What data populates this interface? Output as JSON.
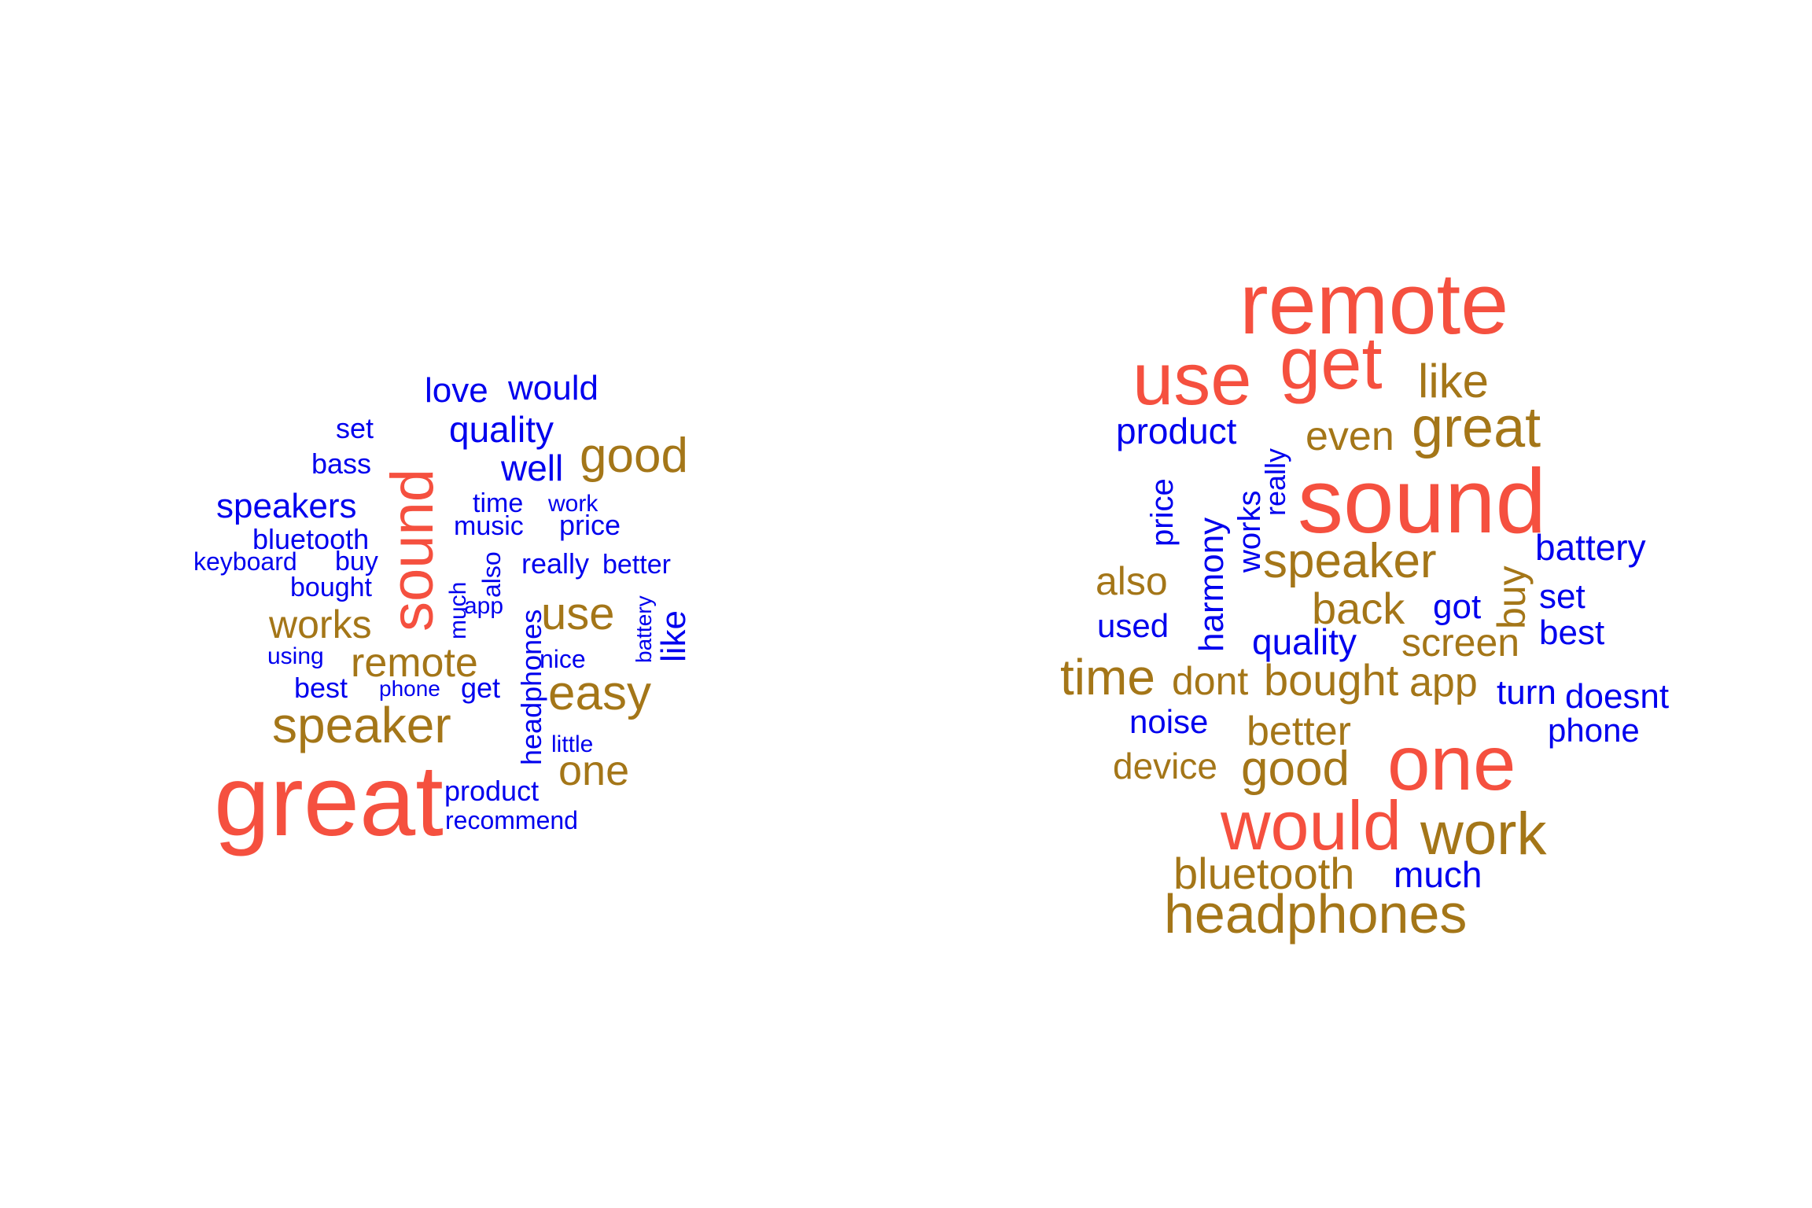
{
  "colors": {
    "top_tier": "#f5503f",
    "mid_tier": "#a47618",
    "low_tier": "#0000ee",
    "background": "#ffffff"
  },
  "word_clouds": [
    {
      "words": [
        {
          "text": "great",
          "tier": "top_tier"
        },
        {
          "text": "sound",
          "tier": "top_tier"
        },
        {
          "text": "speaker",
          "tier": "mid_tier"
        },
        {
          "text": "good",
          "tier": "mid_tier"
        },
        {
          "text": "easy",
          "tier": "mid_tier"
        },
        {
          "text": "use",
          "tier": "mid_tier"
        },
        {
          "text": "one",
          "tier": "mid_tier"
        },
        {
          "text": "remote",
          "tier": "mid_tier"
        },
        {
          "text": "works",
          "tier": "mid_tier"
        },
        {
          "text": "love",
          "tier": "low_tier"
        },
        {
          "text": "would",
          "tier": "low_tier"
        },
        {
          "text": "quality",
          "tier": "low_tier"
        },
        {
          "text": "well",
          "tier": "low_tier"
        },
        {
          "text": "speakers",
          "tier": "low_tier"
        },
        {
          "text": "set",
          "tier": "low_tier"
        },
        {
          "text": "bass",
          "tier": "low_tier"
        },
        {
          "text": "bluetooth",
          "tier": "low_tier"
        },
        {
          "text": "keyboard",
          "tier": "low_tier"
        },
        {
          "text": "buy",
          "tier": "low_tier"
        },
        {
          "text": "bought",
          "tier": "low_tier"
        },
        {
          "text": "time",
          "tier": "low_tier"
        },
        {
          "text": "work",
          "tier": "low_tier"
        },
        {
          "text": "music",
          "tier": "low_tier"
        },
        {
          "text": "price",
          "tier": "low_tier"
        },
        {
          "text": "really",
          "tier": "low_tier"
        },
        {
          "text": "better",
          "tier": "low_tier"
        },
        {
          "text": "also",
          "tier": "low_tier"
        },
        {
          "text": "app",
          "tier": "low_tier"
        },
        {
          "text": "much",
          "tier": "low_tier"
        },
        {
          "text": "headphones",
          "tier": "low_tier"
        },
        {
          "text": "battery",
          "tier": "low_tier"
        },
        {
          "text": "like",
          "tier": "low_tier"
        },
        {
          "text": "using",
          "tier": "low_tier"
        },
        {
          "text": "nice",
          "tier": "low_tier"
        },
        {
          "text": "best",
          "tier": "low_tier"
        },
        {
          "text": "phone",
          "tier": "low_tier"
        },
        {
          "text": "get",
          "tier": "low_tier"
        },
        {
          "text": "little",
          "tier": "low_tier"
        },
        {
          "text": "product",
          "tier": "low_tier"
        },
        {
          "text": "recommend",
          "tier": "low_tier"
        }
      ]
    },
    {
      "words": [
        {
          "text": "remote",
          "tier": "top_tier"
        },
        {
          "text": "sound",
          "tier": "top_tier"
        },
        {
          "text": "get",
          "tier": "top_tier"
        },
        {
          "text": "use",
          "tier": "top_tier"
        },
        {
          "text": "one",
          "tier": "top_tier"
        },
        {
          "text": "would",
          "tier": "top_tier"
        },
        {
          "text": "great",
          "tier": "mid_tier"
        },
        {
          "text": "like",
          "tier": "mid_tier"
        },
        {
          "text": "even",
          "tier": "mid_tier"
        },
        {
          "text": "speaker",
          "tier": "mid_tier"
        },
        {
          "text": "also",
          "tier": "mid_tier"
        },
        {
          "text": "back",
          "tier": "mid_tier"
        },
        {
          "text": "buy",
          "tier": "mid_tier"
        },
        {
          "text": "screen",
          "tier": "mid_tier"
        },
        {
          "text": "time",
          "tier": "mid_tier"
        },
        {
          "text": "dont",
          "tier": "mid_tier"
        },
        {
          "text": "bought",
          "tier": "mid_tier"
        },
        {
          "text": "app",
          "tier": "mid_tier"
        },
        {
          "text": "better",
          "tier": "mid_tier"
        },
        {
          "text": "device",
          "tier": "mid_tier"
        },
        {
          "text": "good",
          "tier": "mid_tier"
        },
        {
          "text": "work",
          "tier": "mid_tier"
        },
        {
          "text": "bluetooth",
          "tier": "mid_tier"
        },
        {
          "text": "headphones",
          "tier": "mid_tier"
        },
        {
          "text": "product",
          "tier": "low_tier"
        },
        {
          "text": "really",
          "tier": "low_tier"
        },
        {
          "text": "price",
          "tier": "low_tier"
        },
        {
          "text": "harmony",
          "tier": "low_tier"
        },
        {
          "text": "works",
          "tier": "low_tier"
        },
        {
          "text": "battery",
          "tier": "low_tier"
        },
        {
          "text": "got",
          "tier": "low_tier"
        },
        {
          "text": "set",
          "tier": "low_tier"
        },
        {
          "text": "used",
          "tier": "low_tier"
        },
        {
          "text": "quality",
          "tier": "low_tier"
        },
        {
          "text": "best",
          "tier": "low_tier"
        },
        {
          "text": "turn",
          "tier": "low_tier"
        },
        {
          "text": "doesnt",
          "tier": "low_tier"
        },
        {
          "text": "noise",
          "tier": "low_tier"
        },
        {
          "text": "phone",
          "tier": "low_tier"
        },
        {
          "text": "much",
          "tier": "low_tier"
        }
      ]
    }
  ]
}
